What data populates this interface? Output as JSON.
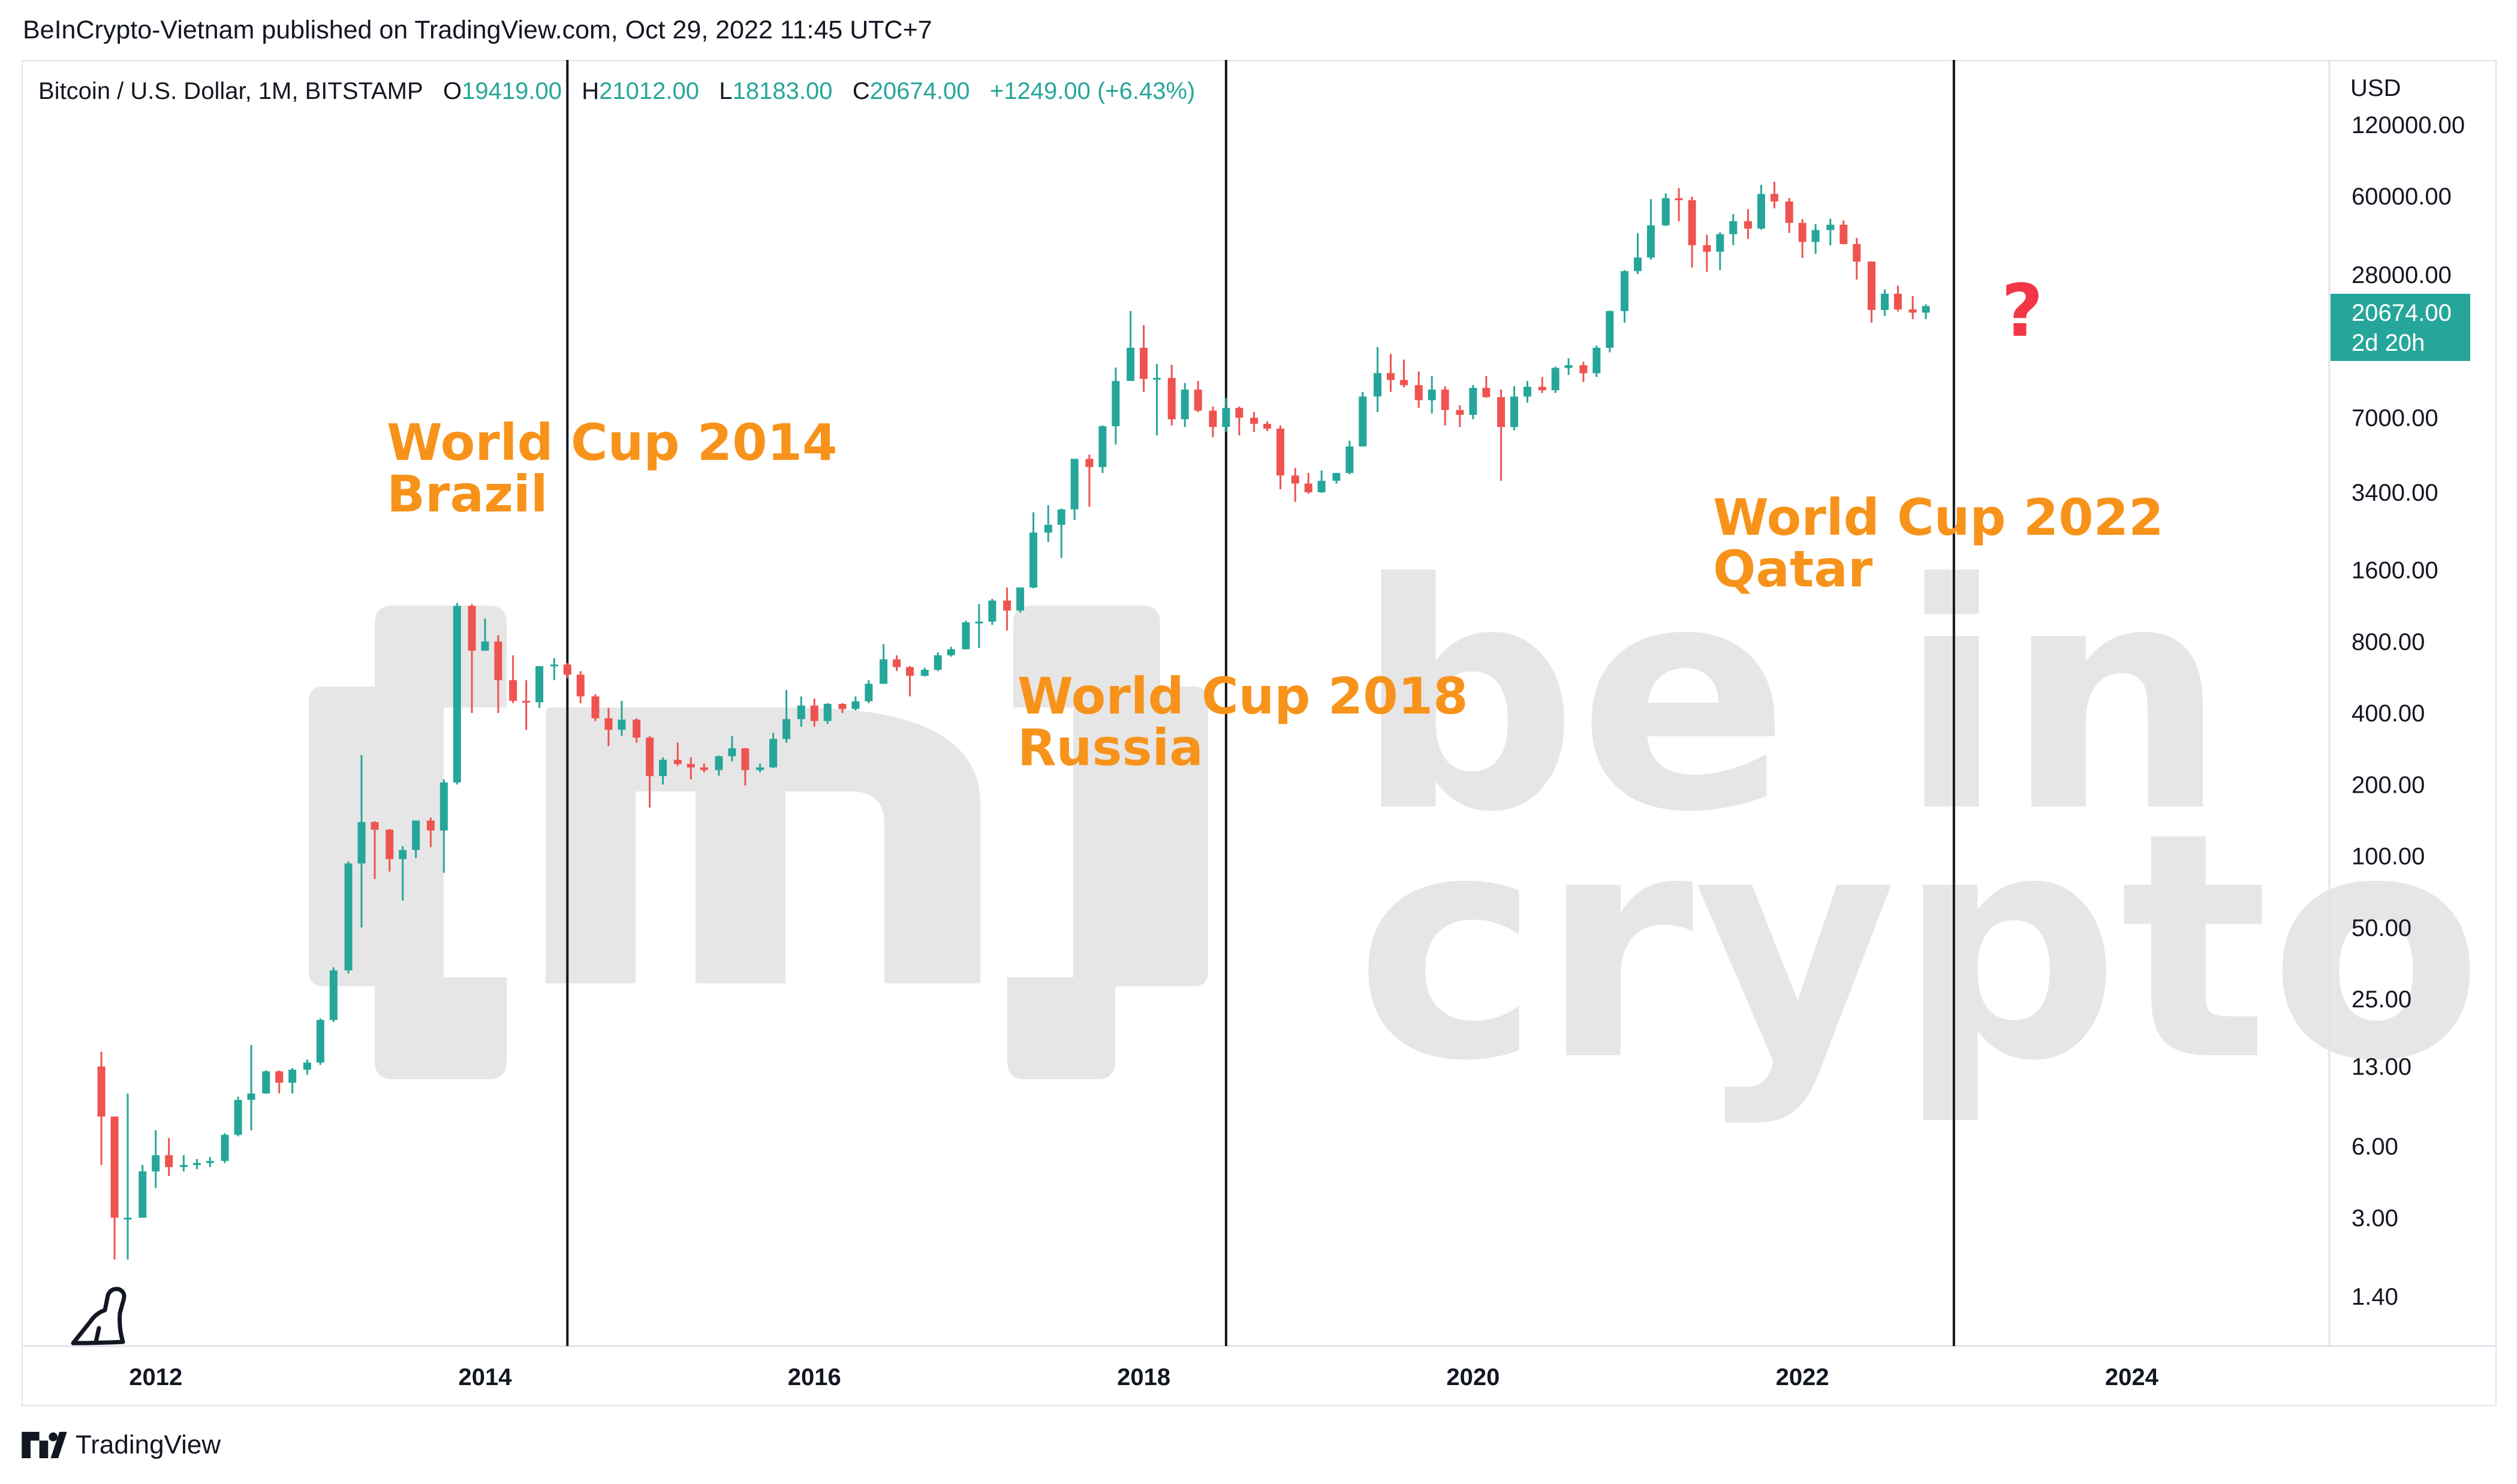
{
  "header": {
    "published_by": "BeInCrypto-Vietnam published on TradingView.com, Oct 29, 2022 11:45 UTC+7",
    "symbol": "Bitcoin / U.S. Dollar, 1M, BITSTAMP",
    "open_label": "O",
    "open": "19419.00",
    "high_label": "H",
    "high": "21012.00",
    "low_label": "L",
    "low": "18183.00",
    "close_label": "C",
    "close": "20674.00",
    "change": "+1249.00 (+6.43%)"
  },
  "price_axis": {
    "currency": "USD",
    "current_price": "20674.00",
    "countdown": "2d 20h"
  },
  "footer": {
    "brand": "TradingView"
  },
  "annotations": [
    {
      "line1": "World Cup 2014",
      "line2": "Brazil"
    },
    {
      "line1": "World Cup 2018",
      "line2": "Russia"
    },
    {
      "line1": "World Cup 2022",
      "line2": "Qatar"
    }
  ],
  "question_mark": "?",
  "watermark": {
    "line1": "be in",
    "line2": "crypto"
  },
  "colors": {
    "up": "#26a69a",
    "down": "#ef5350",
    "annotation": "#f7931a",
    "question": "#f23645",
    "watermark": "#e6e6e6",
    "price_tag": "#26a69a"
  },
  "icons": {
    "dino": "tradingview-dino-icon",
    "logo": "tradingview-logo-icon"
  },
  "chart_data": {
    "type": "candlestick",
    "title": "Bitcoin / U.S. Dollar, 1M, BITSTAMP",
    "scale": "log",
    "ylabel": "USD",
    "ylim": [
      0.9,
      200000
    ],
    "xlim": [
      2011.2,
      2025.2
    ],
    "x_ticks": [
      "2012",
      "2014",
      "2016",
      "2018",
      "2020",
      "2022",
      "2024"
    ],
    "y_ticks": [
      "120000.00",
      "60000.00",
      "28000.00",
      "7000.00",
      "3400.00",
      "1600.00",
      "800.00",
      "400.00",
      "200.00",
      "100.00",
      "50.00",
      "25.00",
      "13.00",
      "6.00",
      "3.00",
      "1.40"
    ],
    "vertical_lines": [
      2014.5,
      2018.5,
      2022.92
    ],
    "last_price": 20674,
    "candles": [
      [
        2011.67,
        13,
        15,
        5,
        8
      ],
      [
        2011.75,
        8,
        8,
        2,
        3
      ],
      [
        2011.83,
        3,
        10,
        2,
        3
      ],
      [
        2011.92,
        3,
        5,
        3,
        4.7
      ],
      [
        2012.0,
        4.7,
        7,
        4,
        5.5
      ],
      [
        2012.08,
        5.5,
        6.5,
        4.5,
        4.9
      ],
      [
        2012.17,
        4.9,
        5.5,
        4.7,
        5
      ],
      [
        2012.25,
        5,
        5.3,
        4.8,
        5.1
      ],
      [
        2012.33,
        5.1,
        5.4,
        4.9,
        5.2
      ],
      [
        2012.42,
        5.2,
        6.8,
        5.1,
        6.7
      ],
      [
        2012.5,
        6.7,
        9.7,
        6.6,
        9.4
      ],
      [
        2012.58,
        9.4,
        16,
        7,
        10
      ],
      [
        2012.67,
        10,
        12.5,
        10,
        12.4
      ],
      [
        2012.75,
        12.4,
        12.5,
        10,
        11.1
      ],
      [
        2012.83,
        11.1,
        12.8,
        10,
        12.6
      ],
      [
        2012.92,
        12.6,
        13.9,
        12,
        13.5
      ],
      [
        2013.0,
        13.5,
        20.7,
        13.2,
        20.4
      ],
      [
        2013.08,
        20.4,
        34,
        20,
        33
      ],
      [
        2013.17,
        33,
        95,
        32,
        93
      ],
      [
        2013.25,
        93,
        266,
        50,
        139
      ],
      [
        2013.33,
        139,
        140,
        80,
        129
      ],
      [
        2013.42,
        129,
        130,
        86,
        97
      ],
      [
        2013.5,
        97,
        110,
        65,
        106
      ],
      [
        2013.58,
        106,
        127,
        98,
        141
      ],
      [
        2013.67,
        141,
        145,
        109,
        128
      ],
      [
        2013.75,
        128,
        210,
        85,
        204
      ],
      [
        2013.83,
        204,
        1163,
        200,
        1130
      ],
      [
        2013.92,
        1130,
        1150,
        400,
        732
      ],
      [
        2014.0,
        732,
        1000,
        730,
        800
      ],
      [
        2014.08,
        800,
        850,
        400,
        550
      ],
      [
        2014.17,
        550,
        700,
        440,
        450
      ],
      [
        2014.25,
        450,
        550,
        340,
        444
      ],
      [
        2014.33,
        444,
        630,
        420,
        630
      ],
      [
        2014.42,
        630,
        680,
        550,
        640
      ],
      [
        2014.5,
        640,
        650,
        560,
        580
      ],
      [
        2014.58,
        580,
        600,
        440,
        470
      ],
      [
        2014.67,
        470,
        480,
        370,
        380
      ],
      [
        2014.75,
        380,
        420,
        290,
        340
      ],
      [
        2014.83,
        340,
        450,
        320,
        375
      ],
      [
        2014.92,
        375,
        380,
        300,
        315
      ],
      [
        2015.0,
        315,
        320,
        160,
        217
      ],
      [
        2015.08,
        217,
        260,
        200,
        254
      ],
      [
        2015.17,
        254,
        300,
        240,
        244
      ],
      [
        2015.25,
        244,
        260,
        210,
        236
      ],
      [
        2015.33,
        236,
        245,
        225,
        230
      ],
      [
        2015.42,
        230,
        265,
        218,
        263
      ],
      [
        2015.5,
        263,
        320,
        250,
        284
      ],
      [
        2015.58,
        284,
        285,
        198,
        230
      ],
      [
        2015.67,
        230,
        245,
        225,
        236
      ],
      [
        2015.75,
        236,
        330,
        235,
        311
      ],
      [
        2015.83,
        311,
        500,
        300,
        377
      ],
      [
        2015.92,
        377,
        470,
        350,
        430
      ],
      [
        2016.0,
        430,
        460,
        350,
        370
      ],
      [
        2016.08,
        370,
        440,
        360,
        437
      ],
      [
        2016.17,
        437,
        440,
        400,
        416
      ],
      [
        2016.25,
        416,
        470,
        410,
        448
      ],
      [
        2016.33,
        448,
        550,
        440,
        531
      ],
      [
        2016.42,
        531,
        780,
        530,
        673
      ],
      [
        2016.5,
        673,
        700,
        600,
        624
      ],
      [
        2016.58,
        624,
        630,
        470,
        574
      ],
      [
        2016.67,
        574,
        620,
        570,
        608
      ],
      [
        2016.75,
        608,
        720,
        600,
        700
      ],
      [
        2016.83,
        700,
        760,
        690,
        742
      ],
      [
        2016.92,
        742,
        980,
        740,
        963
      ],
      [
        2017.0,
        963,
        1150,
        750,
        970
      ],
      [
        2017.08,
        970,
        1210,
        940,
        1190
      ],
      [
        2017.17,
        1190,
        1350,
        890,
        1080
      ],
      [
        2017.25,
        1080,
        1350,
        1060,
        1350
      ],
      [
        2017.33,
        1350,
        2800,
        1340,
        2300
      ],
      [
        2017.42,
        2300,
        3000,
        2100,
        2480
      ],
      [
        2017.5,
        2480,
        2900,
        1800,
        2880
      ],
      [
        2017.58,
        2880,
        4700,
        2600,
        4700
      ],
      [
        2017.67,
        4700,
        4900,
        2950,
        4340
      ],
      [
        2017.75,
        4340,
        6500,
        4100,
        6450
      ],
      [
        2017.83,
        6450,
        11400,
        5400,
        10000
      ],
      [
        2017.92,
        10000,
        19700,
        10000,
        13800
      ],
      [
        2018.0,
        13800,
        17200,
        9000,
        10200
      ],
      [
        2018.08,
        10200,
        11800,
        5900,
        10300
      ],
      [
        2018.17,
        10300,
        11700,
        6500,
        6900
      ],
      [
        2018.25,
        6900,
        9800,
        6400,
        9200
      ],
      [
        2018.33,
        9200,
        10000,
        7400,
        7500
      ],
      [
        2018.42,
        7500,
        7800,
        5800,
        6400
      ],
      [
        2018.5,
        6400,
        8500,
        6100,
        7700
      ],
      [
        2018.58,
        7700,
        7800,
        5900,
        7000
      ],
      [
        2018.67,
        7000,
        7400,
        6100,
        6600
      ],
      [
        2018.75,
        6600,
        6750,
        6150,
        6300
      ],
      [
        2018.83,
        6300,
        6500,
        3500,
        4000
      ],
      [
        2018.92,
        4000,
        4300,
        3100,
        3700
      ],
      [
        2019.0,
        3700,
        4100,
        3350,
        3400
      ],
      [
        2019.08,
        3400,
        4200,
        3380,
        3800
      ],
      [
        2019.17,
        3800,
        4100,
        3700,
        4100
      ],
      [
        2019.25,
        4100,
        5600,
        4050,
        5300
      ],
      [
        2019.33,
        5300,
        9000,
        5300,
        8600
      ],
      [
        2019.42,
        8600,
        13900,
        7400,
        10800
      ],
      [
        2019.5,
        10800,
        13000,
        9000,
        10100
      ],
      [
        2019.58,
        10100,
        12300,
        9400,
        9600
      ],
      [
        2019.67,
        9600,
        10950,
        7700,
        8300
      ],
      [
        2019.75,
        8300,
        10500,
        7300,
        9200
      ],
      [
        2019.83,
        9200,
        9500,
        6500,
        7550
      ],
      [
        2019.92,
        7550,
        7900,
        6400,
        7200
      ],
      [
        2020.0,
        7200,
        9600,
        6900,
        9350
      ],
      [
        2020.08,
        9350,
        10500,
        8500,
        8550
      ],
      [
        2020.17,
        8550,
        9200,
        3800,
        6400
      ],
      [
        2020.25,
        6400,
        9500,
        6200,
        8600
      ],
      [
        2020.33,
        8600,
        10000,
        8100,
        9450
      ],
      [
        2020.42,
        9450,
        10400,
        8900,
        9140
      ],
      [
        2020.5,
        9140,
        11500,
        8900,
        11350
      ],
      [
        2020.58,
        11350,
        12450,
        10600,
        11650
      ],
      [
        2020.67,
        11650,
        12050,
        9900,
        10780
      ],
      [
        2020.75,
        10780,
        14100,
        10400,
        13800
      ],
      [
        2020.83,
        13800,
        19800,
        13200,
        19700
      ],
      [
        2020.92,
        19700,
        29300,
        17600,
        29000
      ],
      [
        2021.0,
        29000,
        41900,
        28200,
        33100
      ],
      [
        2021.08,
        33100,
        58300,
        32400,
        45200
      ],
      [
        2021.17,
        45200,
        61700,
        44900,
        58800
      ],
      [
        2021.25,
        58800,
        64800,
        47000,
        57700
      ],
      [
        2021.33,
        57700,
        59600,
        30000,
        37300
      ],
      [
        2021.42,
        37300,
        41300,
        28800,
        35000
      ],
      [
        2021.5,
        35000,
        42300,
        29300,
        41500
      ],
      [
        2021.58,
        41500,
        50500,
        37300,
        47100
      ],
      [
        2021.67,
        47100,
        52900,
        39600,
        43800
      ],
      [
        2021.75,
        43800,
        66900,
        43300,
        61300
      ],
      [
        2021.83,
        61300,
        69000,
        53300,
        57000
      ],
      [
        2021.92,
        57000,
        59000,
        42000,
        46300
      ],
      [
        2022.0,
        46300,
        48000,
        33000,
        38500
      ],
      [
        2022.08,
        38500,
        45800,
        34300,
        43200
      ],
      [
        2022.17,
        43200,
        48200,
        37200,
        45500
      ],
      [
        2022.25,
        45500,
        47400,
        37600,
        37700
      ],
      [
        2022.33,
        37700,
        40000,
        26700,
        31800
      ],
      [
        2022.42,
        31800,
        31900,
        17600,
        19900
      ],
      [
        2022.5,
        19900,
        24300,
        18800,
        23300
      ],
      [
        2022.58,
        23300,
        25200,
        19600,
        20000
      ],
      [
        2022.67,
        20000,
        22800,
        18200,
        19400
      ],
      [
        2022.75,
        19400,
        21000,
        18200,
        20674
      ]
    ]
  }
}
